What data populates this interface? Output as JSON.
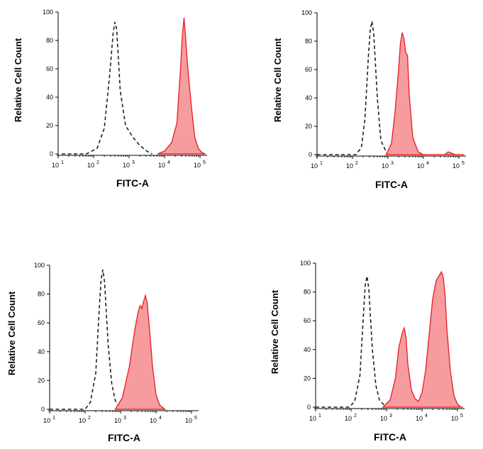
{
  "chart_data": [
    {
      "type": "area",
      "xlabel": "FITC-A",
      "ylabel": "Relative Cell Count",
      "xscale": "log",
      "xlim": [
        1,
        5.2
      ],
      "ylim": [
        0,
        100
      ],
      "yticks": [
        "0",
        "20",
        "40",
        "60",
        "80",
        "100"
      ],
      "xticks": [
        {
          "base": "10",
          "exp": "1"
        },
        {
          "base": "10",
          "exp": "2"
        },
        {
          "base": "10",
          "exp": "3"
        },
        {
          "base": "10",
          "exp": "4"
        },
        {
          "base": "10",
          "exp": "5"
        }
      ],
      "series": [
        {
          "style": "dashed",
          "color": "#222222",
          "log_x": [
            1.1,
            1.8,
            2.1,
            2.3,
            2.45,
            2.55,
            2.6,
            2.65,
            2.75,
            2.9,
            3.1,
            3.3,
            3.5,
            3.65
          ],
          "y": [
            0,
            0,
            4,
            18,
            55,
            85,
            93,
            88,
            45,
            20,
            12,
            6,
            2,
            0
          ]
        },
        {
          "style": "filled",
          "color": "#e8262a",
          "log_x": [
            3.8,
            4.0,
            4.2,
            4.35,
            4.45,
            4.5,
            4.55,
            4.6,
            4.65,
            4.75,
            4.85,
            4.95,
            5.05,
            5.15
          ],
          "y": [
            0,
            2,
            8,
            22,
            60,
            83,
            96,
            80,
            62,
            35,
            12,
            4,
            1,
            0
          ]
        }
      ]
    },
    {
      "type": "area",
      "xlabel": "FITC-A",
      "ylabel": "Relative Cell Count",
      "xscale": "log",
      "xlim": [
        1,
        5.2
      ],
      "ylim": [
        0,
        100
      ],
      "yticks": [
        "0",
        "20",
        "40",
        "60",
        "80",
        "100"
      ],
      "xticks": [
        {
          "base": "10",
          "exp": "1"
        },
        {
          "base": "10",
          "exp": "2"
        },
        {
          "base": "10",
          "exp": "3"
        },
        {
          "base": "10",
          "exp": "4"
        },
        {
          "base": "10",
          "exp": "5"
        }
      ],
      "series": [
        {
          "style": "dashed",
          "color": "#222222",
          "log_x": [
            1.0,
            2.1,
            2.25,
            2.35,
            2.45,
            2.5,
            2.55,
            2.6,
            2.7,
            2.8,
            2.95,
            3.0
          ],
          "y": [
            0,
            0,
            5,
            25,
            70,
            88,
            94,
            85,
            40,
            10,
            2,
            0
          ]
        },
        {
          "style": "filled",
          "color": "#e8262a",
          "log_x": [
            2.95,
            3.1,
            3.2,
            3.3,
            3.35,
            3.4,
            3.45,
            3.5,
            3.55,
            3.6,
            3.7,
            3.85,
            4.0,
            4.6,
            4.7,
            4.8,
            4.9,
            5.15
          ],
          "y": [
            0,
            8,
            30,
            60,
            78,
            86,
            82,
            72,
            70,
            42,
            12,
            2,
            0,
            0,
            2,
            1,
            0,
            0
          ]
        }
      ]
    },
    {
      "type": "area",
      "xlabel": "FITC-A",
      "ylabel": "Relative Cell Count",
      "xscale": "log",
      "xlim": [
        1,
        5.2
      ],
      "ylim": [
        0,
        100
      ],
      "yticks": [
        "0",
        "20",
        "40",
        "60",
        "80",
        "100"
      ],
      "xticks": [
        {
          "base": "10",
          "exp": "1"
        },
        {
          "base": "10",
          "exp": "2"
        },
        {
          "base": "10",
          "exp": "3"
        },
        {
          "base": "10",
          "exp": "4"
        },
        {
          "base": "10",
          "exp": "5"
        }
      ],
      "series": [
        {
          "style": "dashed",
          "color": "#222222",
          "log_x": [
            1.0,
            2.0,
            2.15,
            2.3,
            2.4,
            2.45,
            2.5,
            2.55,
            2.65,
            2.75,
            2.85,
            3.0,
            3.1
          ],
          "y": [
            0,
            0,
            5,
            25,
            70,
            90,
            97,
            88,
            45,
            18,
            6,
            1,
            0
          ]
        },
        {
          "style": "filled",
          "color": "#e8262a",
          "log_x": [
            2.85,
            3.05,
            3.25,
            3.4,
            3.5,
            3.55,
            3.6,
            3.65,
            3.7,
            3.75,
            3.8,
            3.9,
            4.0,
            4.1,
            4.25
          ],
          "y": [
            0,
            8,
            30,
            55,
            68,
            72,
            70,
            75,
            79,
            74,
            60,
            30,
            10,
            3,
            0
          ]
        }
      ]
    },
    {
      "type": "area",
      "xlabel": "FITC-A",
      "ylabel": "Relative Cell Count",
      "xscale": "log",
      "xlim": [
        1,
        5.2
      ],
      "ylim": [
        0,
        100
      ],
      "yticks": [
        "0",
        "20",
        "40",
        "60",
        "80",
        "100"
      ],
      "xticks": [
        {
          "base": "10",
          "exp": "1"
        },
        {
          "base": "10",
          "exp": "2"
        },
        {
          "base": "10",
          "exp": "3"
        },
        {
          "base": "10",
          "exp": "4"
        },
        {
          "base": "10",
          "exp": "5"
        }
      ],
      "series": [
        {
          "style": "dashed",
          "color": "#222222",
          "log_x": [
            1.0,
            1.95,
            2.1,
            2.25,
            2.35,
            2.4,
            2.45,
            2.5,
            2.6,
            2.7,
            2.8,
            2.95,
            3.1
          ],
          "y": [
            0,
            0,
            4,
            22,
            65,
            85,
            91,
            82,
            40,
            15,
            5,
            1,
            0
          ]
        },
        {
          "style": "filled",
          "color": "#e8262a",
          "log_x": [
            2.9,
            3.1,
            3.25,
            3.35,
            3.45,
            3.5,
            3.55,
            3.6,
            3.7,
            3.8,
            3.9,
            4.0,
            4.1,
            4.2,
            4.3,
            4.4,
            4.5,
            4.55,
            4.6,
            4.65,
            4.7,
            4.8,
            4.9,
            5.0,
            5.1,
            5.15
          ],
          "y": [
            0,
            5,
            20,
            42,
            52,
            55,
            48,
            30,
            12,
            6,
            4,
            10,
            25,
            50,
            75,
            88,
            92,
            94,
            90,
            78,
            55,
            25,
            8,
            2,
            0,
            0
          ]
        }
      ]
    }
  ]
}
